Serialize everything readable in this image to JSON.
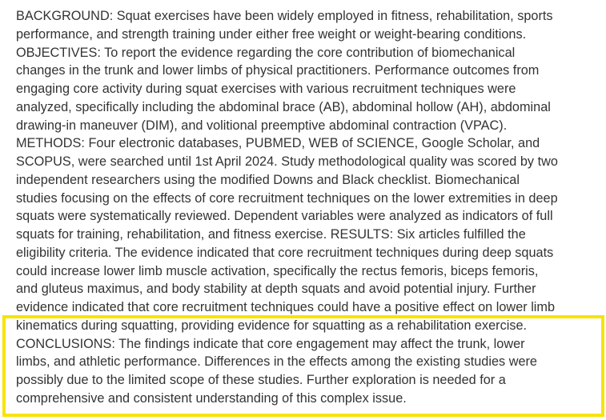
{
  "abstract": {
    "lines": [
      "BACKGROUND: Squat exercises have been widely employed in fitness, rehabilitation, sports",
      "performance, and strength training under either free weight or weight-bearing conditions.",
      "OBJECTIVES: To report the evidence regarding the core contribution of biomechanical",
      "changes in the trunk and lower limbs of physical practitioners. Performance outcomes from",
      "engaging core activity during squat exercises with various recruitment techniques were",
      "analyzed, specifically including the abdominal brace (AB), abdominal hollow (AH), abdominal",
      "drawing-in maneuver (DIM), and volitional preemptive abdominal contraction (VPAC).",
      "METHODS: Four electronic databases, PUBMED, WEB of SCIENCE, Google Scholar, and",
      "SCOPUS, were searched until 1st April 2024. Study methodological quality was scored by two",
      "independent researchers using the modified Downs and Black checklist. Biomechanical",
      "studies focusing on the effects of core recruitment techniques on the lower extremities in deep",
      "squats were systematically reviewed. Dependent variables were analyzed as indicators of full",
      "squats for training, rehabilitation, and fitness exercise. RESULTS: Six articles fulfilled the",
      "eligibility criteria. The evidence indicated that core recruitment techniques during deep squats",
      "could increase lower limb muscle activation, specifically the rectus femoris, biceps femoris,",
      "and gluteus maximus, and body stability at depth squats and avoid potential injury. Further",
      "evidence indicated that core recruitment techniques could have a positive effect on lower limb",
      "kinematics during squatting, providing evidence for squatting as a rehabilitation exercise.",
      "CONCLUSIONS: The findings indicate that core engagement may affect the trunk, lower",
      "limbs, and athletic performance. Differences in the effects among the existing studies were",
      "possibly due to the limited scope of these studies. Further exploration is needed for a",
      "comprehensive and consistent understanding of this complex issue."
    ]
  },
  "highlight": {
    "color": "#f7e400"
  }
}
